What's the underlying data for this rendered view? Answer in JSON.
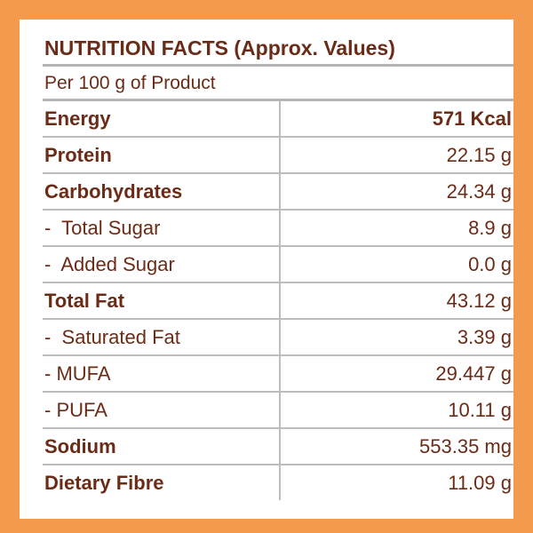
{
  "title": "NUTRITION FACTS (Approx. Values)",
  "subtitle": "Per 100 g of Product",
  "rows": [
    {
      "name": "Energy",
      "value": "571 Kcal"
    },
    {
      "name": "Protein",
      "value": "22.15 g"
    },
    {
      "name": "Carbohydrates",
      "value": "24.34 g"
    },
    {
      "name": "-  Total Sugar",
      "value": "8.9 g"
    },
    {
      "name": "-  Added Sugar",
      "value": "0.0 g"
    },
    {
      "name": "Total Fat",
      "value": "43.12 g"
    },
    {
      "name": "-  Saturated Fat",
      "value": "3.39 g"
    },
    {
      "name": "- MUFA",
      "value": "29.447 g"
    },
    {
      "name": "- PUFA",
      "value": "10.11 g"
    },
    {
      "name": "Sodium",
      "value": "553.35 mg"
    },
    {
      "name": "Dietary Fibre",
      "value": "11.09 g"
    }
  ],
  "colors": {
    "border": "#F39A4E",
    "text": "#6B2C17",
    "rule": "#B5B5B5"
  }
}
